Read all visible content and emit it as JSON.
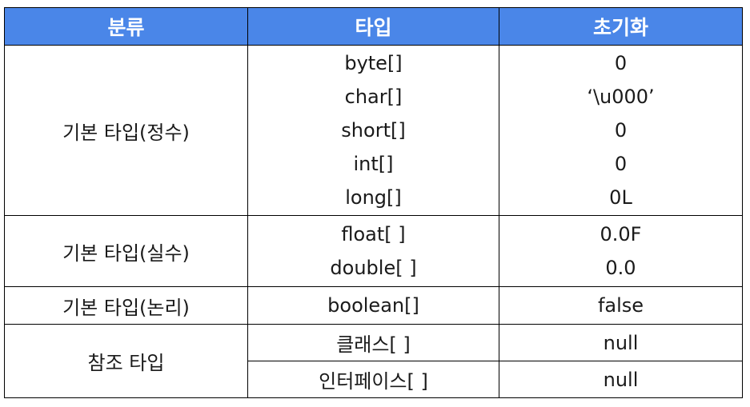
{
  "table": {
    "headers": [
      "분류",
      "타입",
      "초기화"
    ],
    "groups": [
      {
        "category": "기본 타입(정수)",
        "types": [
          "byte[]",
          "char[]",
          "short[]",
          "int[]",
          "long[]"
        ],
        "inits": [
          "0",
          "‘\\u000’",
          "0",
          "0",
          "0L"
        ]
      },
      {
        "category": "기본 타입(실수)",
        "types": [
          "float[ ]",
          "double[ ]"
        ],
        "inits": [
          "0.0F",
          "0.0"
        ]
      },
      {
        "category": "기본 타입(논리)",
        "types": [
          "boolean[]"
        ],
        "inits": [
          "false"
        ]
      },
      {
        "category": "참조 타입",
        "types": [
          "클래스[ ]",
          "인터페이스[ ]"
        ],
        "inits": [
          "null",
          "null"
        ]
      }
    ]
  },
  "colors": {
    "header_bg": "#4a86e8",
    "header_text": "#ffffff",
    "border": "#000000",
    "cell_text": "#1a1a1a"
  }
}
